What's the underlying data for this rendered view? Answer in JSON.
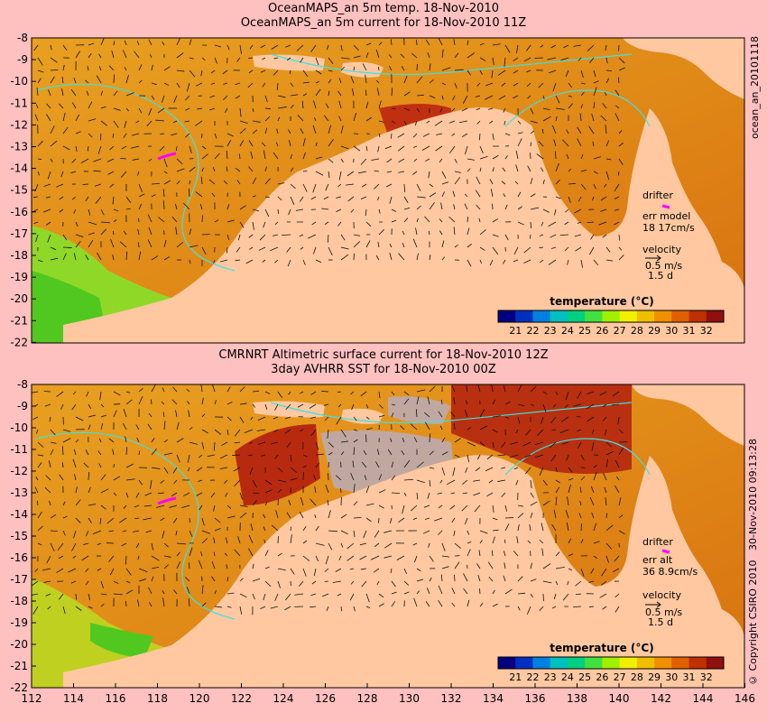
{
  "panels": [
    {
      "title_line1": "OceanMAPS_an 5m temp. 18-Nov-2010",
      "title_line2": "OceanMAPS_an 5m current for 18-Nov-2010 11Z",
      "side_label": "ocean_an_20101118",
      "drifter": {
        "label": "drifter",
        "err_label": "err model",
        "err_value": "18 17cm/s"
      },
      "velocity": {
        "label": "velocity",
        "speed": "0.5 m/s",
        "duration": "1.5 d"
      }
    },
    {
      "title_line1": "CMRNRT Altimetric surface current for 18-Nov-2010 12Z",
      "title_line2": "3day AVHRR SST for 18-Nov-2010 00Z",
      "side_label": "30-Nov-2010 09:13:28",
      "side_label2": "© Copyright CSIRO 2010",
      "drifter": {
        "label": "drifter",
        "err_label": "err alt",
        "err_value": "36 8.9cm/s"
      },
      "velocity": {
        "label": "velocity",
        "speed": "0.5 m/s",
        "duration": "1.5 d"
      }
    }
  ],
  "colorbar": {
    "title": "temperature (°C)",
    "ticks": [
      "21",
      "22",
      "23",
      "24",
      "25",
      "26",
      "27",
      "28",
      "29",
      "30",
      "31",
      "32"
    ],
    "colors": [
      "#000080",
      "#0030c0",
      "#0080e0",
      "#00c0c0",
      "#00d080",
      "#40e040",
      "#a0f000",
      "#f0f000",
      "#f0c000",
      "#f09000",
      "#e06000",
      "#c03000",
      "#901010"
    ]
  },
  "axes": {
    "lat_ticks": [
      "-8",
      "-9",
      "-10",
      "-11",
      "-12",
      "-13",
      "-14",
      "-15",
      "-16",
      "-17",
      "-18",
      "-19",
      "-20",
      "-21",
      "-22"
    ],
    "lon_ticks": [
      "112",
      "114",
      "116",
      "118",
      "120",
      "122",
      "124",
      "126",
      "128",
      "130",
      "132",
      "134",
      "136",
      "138",
      "140",
      "142",
      "144",
      "146"
    ]
  },
  "colors": {
    "land": "#ffc8a0",
    "sea_warm": "#e08a18",
    "sea_hot": "#c04010",
    "sea_cool": "#70d020",
    "no_data": "#c0a8a0",
    "contour": "#40e0e0",
    "drifter": "#ff00ff"
  }
}
